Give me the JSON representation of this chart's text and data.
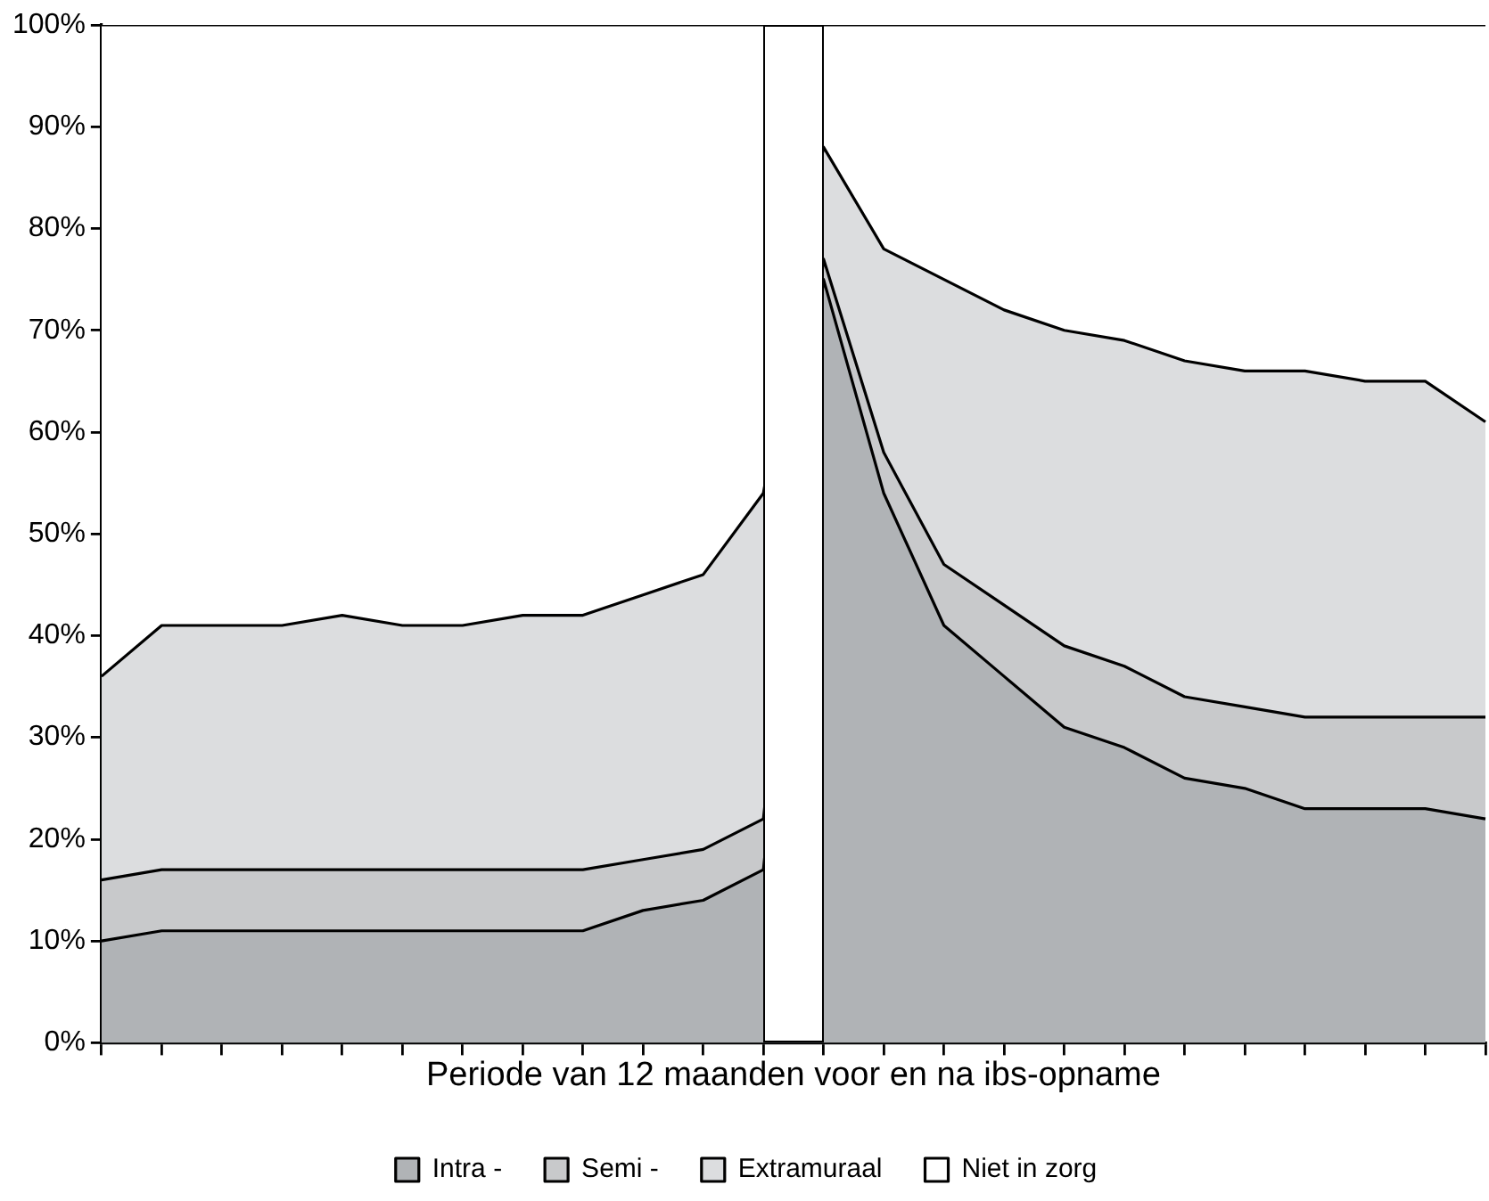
{
  "chart_data": {
    "type": "area",
    "stacked": true,
    "xlabel": "Periode van 12 maanden voor en na ibs-opname",
    "categories": [
      null,
      null,
      null,
      null,
      null,
      null,
      null,
      null,
      null,
      null,
      null,
      null,
      null,
      null,
      null,
      null,
      null,
      null,
      null,
      null,
      null,
      null,
      null,
      null
    ],
    "ylim": [
      0,
      100
    ],
    "yticks": [
      {
        "value": 0,
        "label": "0%"
      },
      {
        "value": 10,
        "label": "10%"
      },
      {
        "value": 20,
        "label": "20%"
      },
      {
        "value": 30,
        "label": "30%"
      },
      {
        "value": 40,
        "label": "40%"
      },
      {
        "value": 50,
        "label": "50%"
      },
      {
        "value": 60,
        "label": "60%"
      },
      {
        "value": 70,
        "label": "70%"
      },
      {
        "value": 80,
        "label": "80%"
      },
      {
        "value": 90,
        "label": "90%"
      },
      {
        "value": 100,
        "label": "100%"
      }
    ],
    "tick_labels": "y",
    "legend": "bottom",
    "series": [
      {
        "name": "Intra -",
        "color": "#b0b3b6",
        "values": [
          10,
          11,
          11,
          11,
          11,
          11,
          11,
          11,
          11,
          13,
          14,
          17,
          75,
          54,
          41,
          36,
          31,
          29,
          26,
          25,
          23,
          23,
          23,
          22
        ]
      },
      {
        "name": "Semi -",
        "color": "#c8c9cb",
        "values": [
          6,
          6,
          6,
          6,
          6,
          6,
          6,
          6,
          6,
          5,
          5,
          5,
          2,
          4,
          6,
          7,
          8,
          8,
          8,
          8,
          9,
          9,
          9,
          10
        ]
      },
      {
        "name": "Extramuraal",
        "color": "#dcdddf",
        "values": [
          20,
          24,
          24,
          24,
          25,
          24,
          24,
          25,
          25,
          26,
          27,
          32,
          11,
          20,
          28,
          29,
          31,
          32,
          33,
          33,
          34,
          33,
          33,
          29
        ]
      },
      {
        "name": "Niet in zorg",
        "color": "#ffffff",
        "values": [
          64,
          59,
          59,
          59,
          58,
          59,
          59,
          58,
          58,
          56,
          54,
          46,
          12,
          22,
          25,
          28,
          30,
          31,
          33,
          34,
          34,
          35,
          35,
          39
        ]
      }
    ]
  }
}
